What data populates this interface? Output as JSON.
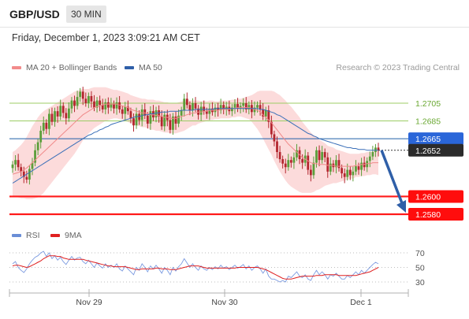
{
  "header": {
    "symbol": "GBP/USD",
    "timeframe": "30 MIN"
  },
  "datetime": "Friday, December 1, 2023 3:09:21 AM CET",
  "legend": {
    "main": [
      {
        "label": "MA 20 + Bollinger Bands",
        "color": "#f28b8b"
      },
      {
        "label": "MA 50",
        "color": "#2f5fa8"
      }
    ],
    "rsi": [
      {
        "label": "RSI",
        "color": "#6a8ed6"
      },
      {
        "label": "9MA",
        "color": "#e02020"
      }
    ]
  },
  "credit": "Research © 2023 Trading Central",
  "colors": {
    "up": "#5b9e3a",
    "down": "#b3262e",
    "resistance": "#9ccc65",
    "support": "#ff1a1a",
    "pivot": "#1f5fa8",
    "band": "#fbd2d2",
    "ma20": "#f08a8a",
    "ma50": "#3a6fb8",
    "arrow": "#2f5fa8",
    "current": "#2b2b2b"
  },
  "chart_data": [
    {
      "type": "candlestick",
      "ylim": [
        1.2565,
        1.2725
      ],
      "x_tick_labels": [
        "Nov 29",
        "Nov 30",
        "Dec 1"
      ],
      "levels": [
        {
          "value": 1.2705,
          "label": "1.2705",
          "kind": "resistance"
        },
        {
          "value": 1.2685,
          "label": "1.2685",
          "kind": "resistance"
        },
        {
          "value": 1.2665,
          "label": "1.2665",
          "kind": "pivot"
        },
        {
          "value": 1.26,
          "label": "1.2600",
          "kind": "support"
        },
        {
          "value": 1.258,
          "label": "1.2580",
          "kind": "support"
        }
      ],
      "current_price": {
        "value": 1.2652,
        "label": "1.2652"
      },
      "forecast_target": 1.258,
      "close": [
        1.2636,
        1.2641,
        1.2633,
        1.2628,
        1.2622,
        1.2619,
        1.2631,
        1.2638,
        1.2652,
        1.2661,
        1.2674,
        1.2683,
        1.2676,
        1.2693,
        1.2684,
        1.2696,
        1.269,
        1.2702,
        1.2694,
        1.2688,
        1.2699,
        1.2708,
        1.2702,
        1.2712,
        1.2718,
        1.271,
        1.2705,
        1.2713,
        1.2707,
        1.27,
        1.2708,
        1.2703,
        1.2698,
        1.2706,
        1.27,
        1.2704,
        1.2699,
        1.2706,
        1.2698,
        1.2693,
        1.2701,
        1.2696,
        1.2688,
        1.268,
        1.2693,
        1.2686,
        1.2698,
        1.2691,
        1.2682,
        1.2696,
        1.2689,
        1.2697,
        1.269,
        1.2679,
        1.2692,
        1.2686,
        1.2675,
        1.269,
        1.2682,
        1.2691,
        1.2697,
        1.271,
        1.2703,
        1.2697,
        1.2705,
        1.2699,
        1.2692,
        1.2701,
        1.2696,
        1.2693,
        1.2699,
        1.2695,
        1.27,
        1.2697,
        1.2703,
        1.2698,
        1.2701,
        1.2696,
        1.27,
        1.2704,
        1.2699,
        1.2702,
        1.2705,
        1.2698,
        1.2703,
        1.2695,
        1.27,
        1.2703,
        1.2698,
        1.269,
        1.2697,
        1.2684,
        1.267,
        1.2662,
        1.265,
        1.2642,
        1.2637,
        1.2633,
        1.2641,
        1.2638,
        1.2644,
        1.2652,
        1.2642,
        1.2638,
        1.2646,
        1.263,
        1.2624,
        1.2638,
        1.2652,
        1.2641,
        1.265,
        1.2644,
        1.2628,
        1.2637,
        1.2633,
        1.2641,
        1.2632,
        1.2626,
        1.2622,
        1.263,
        1.2624,
        1.2628,
        1.2634,
        1.263,
        1.2638,
        1.2633,
        1.264,
        1.2645,
        1.265,
        1.2655,
        1.2652
      ],
      "ma20": [
        1.2625,
        1.2626,
        1.2627,
        1.2628,
        1.263,
        1.2632,
        1.2635,
        1.2638,
        1.2641,
        1.2644,
        1.2647,
        1.265,
        1.2653,
        1.2656,
        1.2659,
        1.2662,
        1.2665,
        1.2668,
        1.2671,
        1.2674,
        1.2677,
        1.268,
        1.2683,
        1.2686,
        1.2689,
        1.2692,
        1.2694,
        1.2696,
        1.2698,
        1.27,
        1.2701,
        1.2702,
        1.2703,
        1.2704,
        1.2704,
        1.2704,
        1.2704,
        1.2704,
        1.2703,
        1.2702,
        1.2701,
        1.27,
        1.2698,
        1.2697,
        1.2696,
        1.2695,
        1.2694,
        1.2694,
        1.2693,
        1.2692,
        1.2692,
        1.2691,
        1.2691,
        1.269,
        1.2689,
        1.2689,
        1.2688,
        1.2688,
        1.2688,
        1.2689,
        1.269,
        1.2691,
        1.2692,
        1.2693,
        1.2694,
        1.2694,
        1.2695,
        1.2695,
        1.2696,
        1.2696,
        1.2697,
        1.2697,
        1.2697,
        1.2697,
        1.2698,
        1.2698,
        1.2698,
        1.2698,
        1.2699,
        1.2699,
        1.27,
        1.27,
        1.27,
        1.27,
        1.27,
        1.2699,
        1.2698,
        1.2697,
        1.2695,
        1.2692,
        1.2689,
        1.2686,
        1.2683,
        1.2679,
        1.2675,
        1.2671,
        1.2667,
        1.2663,
        1.2659,
        1.2656,
        1.2653,
        1.265,
        1.2647,
        1.2644,
        1.2642,
        1.264,
        1.2638,
        1.2637,
        1.2637,
        1.2636,
        1.2636,
        1.2636,
        1.2635,
        1.2635,
        1.2635,
        1.2634,
        1.2634,
        1.2634,
        1.2634,
        1.2634,
        1.2634,
        1.2634,
        1.2635,
        1.2635,
        1.2636,
        1.2636,
        1.2637,
        1.2637,
        1.2638,
        1.2638,
        1.2638
      ],
      "ma50": [
        1.2615,
        1.2617,
        1.2619,
        1.2621,
        1.2623,
        1.2625,
        1.2627,
        1.2629,
        1.2631,
        1.2633,
        1.2635,
        1.2637,
        1.2639,
        1.2641,
        1.2643,
        1.2645,
        1.2647,
        1.2649,
        1.2651,
        1.2653,
        1.2655,
        1.2657,
        1.2659,
        1.2661,
        1.2663,
        1.2665,
        1.2667,
        1.2669,
        1.267,
        1.2672,
        1.2673,
        1.2675,
        1.2676,
        1.2678,
        1.2679,
        1.2681,
        1.2682,
        1.2683,
        1.2684,
        1.2685,
        1.2686,
        1.2687,
        1.2688,
        1.2689,
        1.269,
        1.269,
        1.2691,
        1.2692,
        1.2692,
        1.2693,
        1.2693,
        1.2694,
        1.2694,
        1.2695,
        1.2695,
        1.2695,
        1.2696,
        1.2696,
        1.2696,
        1.2696,
        1.2697,
        1.2697,
        1.2697,
        1.2697,
        1.2697,
        1.2698,
        1.2698,
        1.2698,
        1.2698,
        1.2698,
        1.2698,
        1.2698,
        1.2699,
        1.2699,
        1.2699,
        1.2699,
        1.2699,
        1.2699,
        1.2699,
        1.2699,
        1.2699,
        1.2699,
        1.2699,
        1.2699,
        1.2699,
        1.2699,
        1.2699,
        1.2699,
        1.2698,
        1.2698,
        1.2697,
        1.2696,
        1.2695,
        1.2694,
        1.2692,
        1.2691,
        1.2689,
        1.2687,
        1.2685,
        1.2683,
        1.2681,
        1.2679,
        1.2677,
        1.2675,
        1.2673,
        1.2671,
        1.267,
        1.2668,
        1.2667,
        1.2665,
        1.2664,
        1.2663,
        1.2662,
        1.2661,
        1.266,
        1.2659,
        1.2658,
        1.2657,
        1.2656,
        1.2655,
        1.2655,
        1.2654,
        1.2654,
        1.2653,
        1.2653,
        1.2653,
        1.2652,
        1.2652,
        1.2652,
        1.2652,
        1.2652
      ],
      "band_width": [
        0.0025,
        0.0026,
        0.0028,
        0.003,
        0.0032,
        0.0035,
        0.0038,
        0.0041,
        0.0043,
        0.0045,
        0.0046,
        0.0046,
        0.0045,
        0.0044,
        0.0043,
        0.0042,
        0.0041,
        0.004,
        0.0039,
        0.0038,
        0.0037,
        0.0036,
        0.0035,
        0.0033,
        0.0031,
        0.0029,
        0.0027,
        0.0025,
        0.0024,
        0.0023,
        0.0022,
        0.0021,
        0.002,
        0.0019,
        0.0018,
        0.0017,
        0.0016,
        0.0016,
        0.0016,
        0.0016,
        0.0016,
        0.0016,
        0.0016,
        0.0016,
        0.0016,
        0.0016,
        0.0016,
        0.0016,
        0.0016,
        0.0017,
        0.0017,
        0.0017,
        0.0017,
        0.0017,
        0.0017,
        0.0017,
        0.0017,
        0.0017,
        0.0017,
        0.0017,
        0.0017,
        0.0017,
        0.0016,
        0.0015,
        0.0014,
        0.0014,
        0.0013,
        0.0012,
        0.0012,
        0.0011,
        0.0011,
        0.0011,
        0.001,
        0.001,
        0.001,
        0.001,
        0.001,
        0.001,
        0.001,
        0.001,
        0.001,
        0.001,
        0.0011,
        0.0012,
        0.0013,
        0.0015,
        0.0018,
        0.0021,
        0.0024,
        0.0027,
        0.003,
        0.0033,
        0.0036,
        0.0039,
        0.0041,
        0.0043,
        0.0044,
        0.0045,
        0.0045,
        0.0045,
        0.0044,
        0.0043,
        0.0042,
        0.004,
        0.0038,
        0.0036,
        0.0034,
        0.0032,
        0.003,
        0.0028,
        0.0026,
        0.0024,
        0.0022,
        0.0021,
        0.002,
        0.0019,
        0.0018,
        0.0017,
        0.0016,
        0.0015,
        0.0014,
        0.0014,
        0.0013,
        0.0013,
        0.0013,
        0.0013,
        0.0013,
        0.0013,
        0.0013,
        0.0013,
        0.0014,
        0.0015,
        0.0016
      ]
    },
    {
      "type": "line",
      "ylim": [
        20,
        80
      ],
      "y_ticks": [
        70,
        50,
        30
      ],
      "rsi": [
        55,
        58,
        50,
        46,
        43,
        48,
        55,
        60,
        64,
        66,
        70,
        72,
        65,
        70,
        62,
        66,
        60,
        64,
        58,
        54,
        60,
        65,
        60,
        63,
        64,
        58,
        55,
        60,
        55,
        50,
        56,
        52,
        49,
        55,
        50,
        53,
        50,
        55,
        48,
        45,
        52,
        48,
        44,
        40,
        50,
        46,
        55,
        50,
        44,
        52,
        48,
        53,
        48,
        42,
        50,
        46,
        40,
        50,
        45,
        51,
        55,
        62,
        56,
        50,
        55,
        50,
        46,
        52,
        48,
        46,
        50,
        47,
        51,
        48,
        53,
        49,
        51,
        47,
        50,
        53,
        49,
        51,
        54,
        48,
        52,
        46,
        50,
        52,
        48,
        42,
        48,
        38,
        34,
        34,
        32,
        30,
        32,
        30,
        38,
        36,
        40,
        44,
        38,
        36,
        40,
        34,
        32,
        40,
        46,
        40,
        44,
        40,
        34,
        40,
        38,
        42,
        38,
        34,
        34,
        39,
        36,
        40,
        44,
        40,
        46,
        42,
        46,
        50,
        54,
        57,
        55
      ],
      "ma9": [
        52,
        53,
        53,
        52,
        51,
        50,
        51,
        53,
        55,
        57,
        59,
        62,
        64,
        66,
        66,
        66,
        65,
        65,
        63,
        62,
        61,
        61,
        61,
        61,
        61,
        61,
        60,
        59,
        58,
        57,
        56,
        55,
        54,
        53,
        52,
        52,
        51,
        51,
        51,
        51,
        51,
        50,
        49,
        48,
        47,
        47,
        48,
        48,
        48,
        48,
        48,
        49,
        49,
        48,
        48,
        48,
        47,
        47,
        47,
        48,
        49,
        50,
        51,
        52,
        52,
        52,
        52,
        51,
        50,
        49,
        49,
        49,
        49,
        49,
        49,
        49,
        49,
        49,
        49,
        49,
        50,
        50,
        50,
        50,
        50,
        50,
        50,
        50,
        49,
        48,
        47,
        45,
        43,
        41,
        39,
        37,
        35,
        34,
        34,
        34,
        35,
        36,
        37,
        38,
        38,
        38,
        38,
        38,
        39,
        39,
        39,
        40,
        40,
        40,
        40,
        40,
        39,
        39,
        39,
        39,
        39,
        39,
        39,
        40,
        41,
        42,
        43,
        44,
        46,
        48,
        50
      ]
    }
  ]
}
